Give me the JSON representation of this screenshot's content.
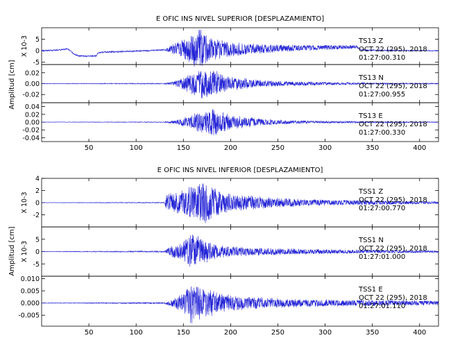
{
  "figure": {
    "colors": {
      "trace": "#2424d6",
      "axis": "#000000",
      "text": "#000000"
    }
  },
  "chart_data": [
    {
      "type": "line",
      "title": "E OFIC INS NIVEL SUPERIOR [DESPLAZAMIENTO]",
      "ylabel": "Amplitud [cm]",
      "xlim": [
        0,
        420
      ],
      "xticks": [
        50,
        100,
        150,
        200,
        250,
        300,
        350,
        400
      ],
      "xtick_labels": [
        "50",
        "100",
        "150",
        "200",
        "250",
        "300",
        "350",
        "400"
      ],
      "panels": [
        {
          "name": "TS13 Z",
          "info": [
            "TS13   Z",
            "OCT 22 (295), 2018",
            "01:27:00.310"
          ],
          "scale_label": "X 10-3",
          "ylim": [
            -6,
            10
          ],
          "yticks": [
            -5,
            0,
            5
          ],
          "ytick_labels": [
            "-5",
            "0",
            "5"
          ],
          "baseline": [
            [
              0,
              0
            ],
            [
              20,
              0.4
            ],
            [
              28,
              0.8
            ],
            [
              32,
              -0.6
            ],
            [
              35,
              -1.6
            ],
            [
              38,
              -2.1
            ],
            [
              45,
              -2.4
            ],
            [
              55,
              -2.3
            ],
            [
              58,
              -2.1
            ],
            [
              60,
              -0.8
            ],
            [
              70,
              -0.5
            ],
            [
              90,
              -0.3
            ],
            [
              110,
              0
            ],
            [
              130,
              0.5
            ],
            [
              160,
              0.8
            ],
            [
              200,
              0.7
            ],
            [
              250,
              1
            ],
            [
              300,
              1.4
            ],
            [
              333,
              1.7
            ],
            [
              338,
              0.4
            ],
            [
              345,
              0.2
            ],
            [
              420,
              0
            ]
          ],
          "envelope": [
            [
              130,
              0.3
            ],
            [
              140,
              2.5
            ],
            [
              150,
              4.5
            ],
            [
              160,
              7.5
            ],
            [
              168,
              9.5
            ],
            [
              175,
              6
            ],
            [
              185,
              4.5
            ],
            [
              200,
              3.5
            ],
            [
              220,
              2.5
            ],
            [
              250,
              1.8
            ],
            [
              280,
              1.3
            ],
            [
              310,
              1
            ],
            [
              333,
              0.8
            ],
            [
              335,
              0.3
            ],
            [
              420,
              0.2
            ]
          ]
        },
        {
          "name": "TS13 N",
          "info": [
            "TS13   N",
            "OCT 22 (295), 2018",
            "01:27:00.955"
          ],
          "ylim": [
            -0.035,
            0.035
          ],
          "yticks": [
            -0.02,
            0,
            0.02
          ],
          "ytick_labels": [
            "-0.02",
            "0.00",
            "0.02"
          ],
          "baseline": [
            [
              0,
              0
            ],
            [
              420,
              0
            ]
          ],
          "envelope": [
            [
              0,
              0.0005
            ],
            [
              130,
              0.001
            ],
            [
              140,
              0.004
            ],
            [
              150,
              0.012
            ],
            [
              160,
              0.022
            ],
            [
              168,
              0.03
            ],
            [
              175,
              0.028
            ],
            [
              185,
              0.024
            ],
            [
              195,
              0.014
            ],
            [
              210,
              0.012
            ],
            [
              225,
              0.008
            ],
            [
              250,
              0.005
            ],
            [
              300,
              0.003
            ],
            [
              350,
              0.0015
            ],
            [
              420,
              0.001
            ]
          ]
        },
        {
          "name": "TS13 E",
          "info": [
            "TS13   E",
            "OCT 22 (295), 2018",
            "01:27:00.330"
          ],
          "ylim": [
            -0.05,
            0.05
          ],
          "yticks": [
            -0.04,
            -0.02,
            0,
            0.02,
            0.04
          ],
          "ytick_labels": [
            "-0.04",
            "-0.02",
            "0.00",
            "0.02",
            "0.04"
          ],
          "baseline": [
            [
              0,
              0
            ],
            [
              420,
              0
            ]
          ],
          "envelope": [
            [
              0,
              0.0005
            ],
            [
              130,
              0.001
            ],
            [
              140,
              0.005
            ],
            [
              150,
              0.012
            ],
            [
              160,
              0.02
            ],
            [
              165,
              0.03
            ],
            [
              172,
              0.025
            ],
            [
              180,
              0.04
            ],
            [
              188,
              0.03
            ],
            [
              200,
              0.02
            ],
            [
              215,
              0.015
            ],
            [
              230,
              0.01
            ],
            [
              260,
              0.005
            ],
            [
              300,
              0.003
            ],
            [
              420,
              0.001
            ]
          ]
        }
      ]
    },
    {
      "type": "line",
      "title": "E OFIC INS NIVEL INFERIOR [DESPLAZAMIENTO]",
      "ylabel": "Amplitud [cm]",
      "xlim": [
        0,
        420
      ],
      "xticks": [
        50,
        100,
        150,
        200,
        250,
        300,
        350,
        400
      ],
      "xtick_labels": [
        "50",
        "100",
        "150",
        "200",
        "250",
        "300",
        "350",
        "400"
      ],
      "panels": [
        {
          "name": "TSS1 Z",
          "info": [
            "TSS1   Z",
            "OCT 22 (295), 2018",
            "01:27:00.770"
          ],
          "scale_label": "X 10-3",
          "ylim": [
            -4,
            4
          ],
          "yticks": [
            -2,
            0,
            2,
            4
          ],
          "ytick_labels": [
            "-2",
            "0",
            "2",
            "4"
          ],
          "baseline": [
            [
              0,
              0
            ],
            [
              420,
              0
            ]
          ],
          "envelope": [
            [
              0,
              0.03
            ],
            [
              130,
              0.08
            ],
            [
              132,
              1.5
            ],
            [
              140,
              1.8
            ],
            [
              150,
              2.2
            ],
            [
              160,
              3.2
            ],
            [
              170,
              3.8
            ],
            [
              180,
              3
            ],
            [
              190,
              2
            ],
            [
              200,
              1.5
            ],
            [
              220,
              1.2
            ],
            [
              250,
              0.8
            ],
            [
              300,
              0.5
            ],
            [
              350,
              0.4
            ],
            [
              420,
              0.2
            ]
          ]
        },
        {
          "name": "TSS1 N",
          "info": [
            "TSS1   N",
            "OCT 22 (295), 2018",
            "01:27:01.000"
          ],
          "scale_label": "X 10-3",
          "ylim": [
            -10,
            10
          ],
          "yticks": [
            -5,
            0,
            5
          ],
          "ytick_labels": [
            "-5",
            "0",
            "5"
          ],
          "baseline": [
            [
              0,
              0
            ],
            [
              420,
              0
            ]
          ],
          "envelope": [
            [
              0,
              0.1
            ],
            [
              130,
              0.3
            ],
            [
              135,
              2
            ],
            [
              150,
              4
            ],
            [
              158,
              8
            ],
            [
              165,
              6.5
            ],
            [
              175,
              4.5
            ],
            [
              190,
              2.5
            ],
            [
              210,
              2
            ],
            [
              240,
              1.5
            ],
            [
              300,
              1
            ],
            [
              350,
              0.7
            ],
            [
              420,
              0.4
            ]
          ]
        },
        {
          "name": "TSS1 E",
          "info": [
            "TSS1   E",
            "OCT 22 (295), 2018",
            "01:27:01.110"
          ],
          "ylim": [
            -0.0095,
            0.011
          ],
          "yticks": [
            -0.005,
            0,
            0.005,
            0.01
          ],
          "ytick_labels": [
            "-0.005",
            "0.000",
            "0.005",
            "0.010"
          ],
          "baseline": [
            [
              0,
              0
            ],
            [
              420,
              0
            ]
          ],
          "envelope": [
            [
              0,
              0.0001
            ],
            [
              130,
              0.0003
            ],
            [
              140,
              0.002
            ],
            [
              150,
              0.004
            ],
            [
              158,
              0.0085
            ],
            [
              168,
              0.007
            ],
            [
              178,
              0.006
            ],
            [
              190,
              0.004
            ],
            [
              210,
              0.003
            ],
            [
              250,
              0.002
            ],
            [
              300,
              0.0015
            ],
            [
              420,
              0.001
            ]
          ]
        }
      ]
    }
  ]
}
